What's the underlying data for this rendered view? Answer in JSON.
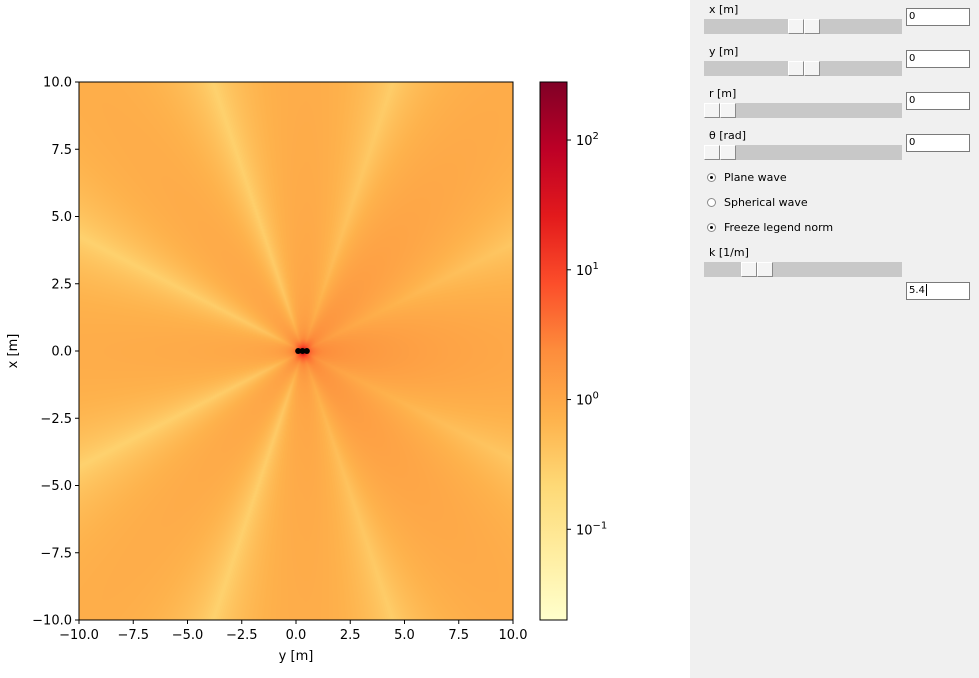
{
  "figure": {
    "chart_data": {
      "type": "heatmap",
      "xlabel": "y [m]",
      "ylabel": "x [m]",
      "xlim": [
        -10.0,
        10.0
      ],
      "ylim": [
        -10.0,
        10.0
      ],
      "x_ticks": [
        "−10.0",
        "−7.5",
        "−5.0",
        "−2.5",
        "0.0",
        "2.5",
        "5.0",
        "7.5",
        "10.0"
      ],
      "y_ticks": [
        "10.0",
        "7.5",
        "5.0",
        "2.5",
        "0.0",
        "−2.5",
        "−5.0",
        "−7.5",
        "−10.0"
      ],
      "colorbar": {
        "scale": "log",
        "range": [
          0.02,
          280
        ],
        "ticks": [
          {
            "base": "10",
            "exp": "2",
            "value": 100
          },
          {
            "base": "10",
            "exp": "1",
            "value": 10
          },
          {
            "base": "10",
            "exp": "0",
            "value": 1
          },
          {
            "base": "10",
            "exp": "−1",
            "value": 0.1
          }
        ],
        "colormap": [
          "#ffffcc",
          "#ffeda0",
          "#fed976",
          "#feb24c",
          "#fd8d3c",
          "#fc4e2a",
          "#e31a1c",
          "#bd0026",
          "#800026"
        ]
      },
      "sources": [
        {
          "x": 0.1
        },
        {
          "x": 0.3
        },
        {
          "x": 0.5
        }
      ],
      "grid": false
    }
  },
  "controls": {
    "x_slider": {
      "label": "x [m]",
      "value": "0",
      "position": 0.5
    },
    "y_slider": {
      "label": "y [m]",
      "value": "0",
      "position": 0.5
    },
    "r_slider": {
      "label": "r [m]",
      "value": "0",
      "position": 0.0
    },
    "theta_slider": {
      "label": "θ [rad]",
      "value": "0",
      "position": 0.0
    },
    "plane_wave": {
      "label": "Plane wave",
      "checked": true
    },
    "spherical_wave": {
      "label": "Spherical wave",
      "checked": false
    },
    "freeze_legend": {
      "label": "Freeze legend norm",
      "checked": true
    },
    "k_slider": {
      "label": "k [1/m]",
      "value": "5.4",
      "position": 0.27
    }
  }
}
